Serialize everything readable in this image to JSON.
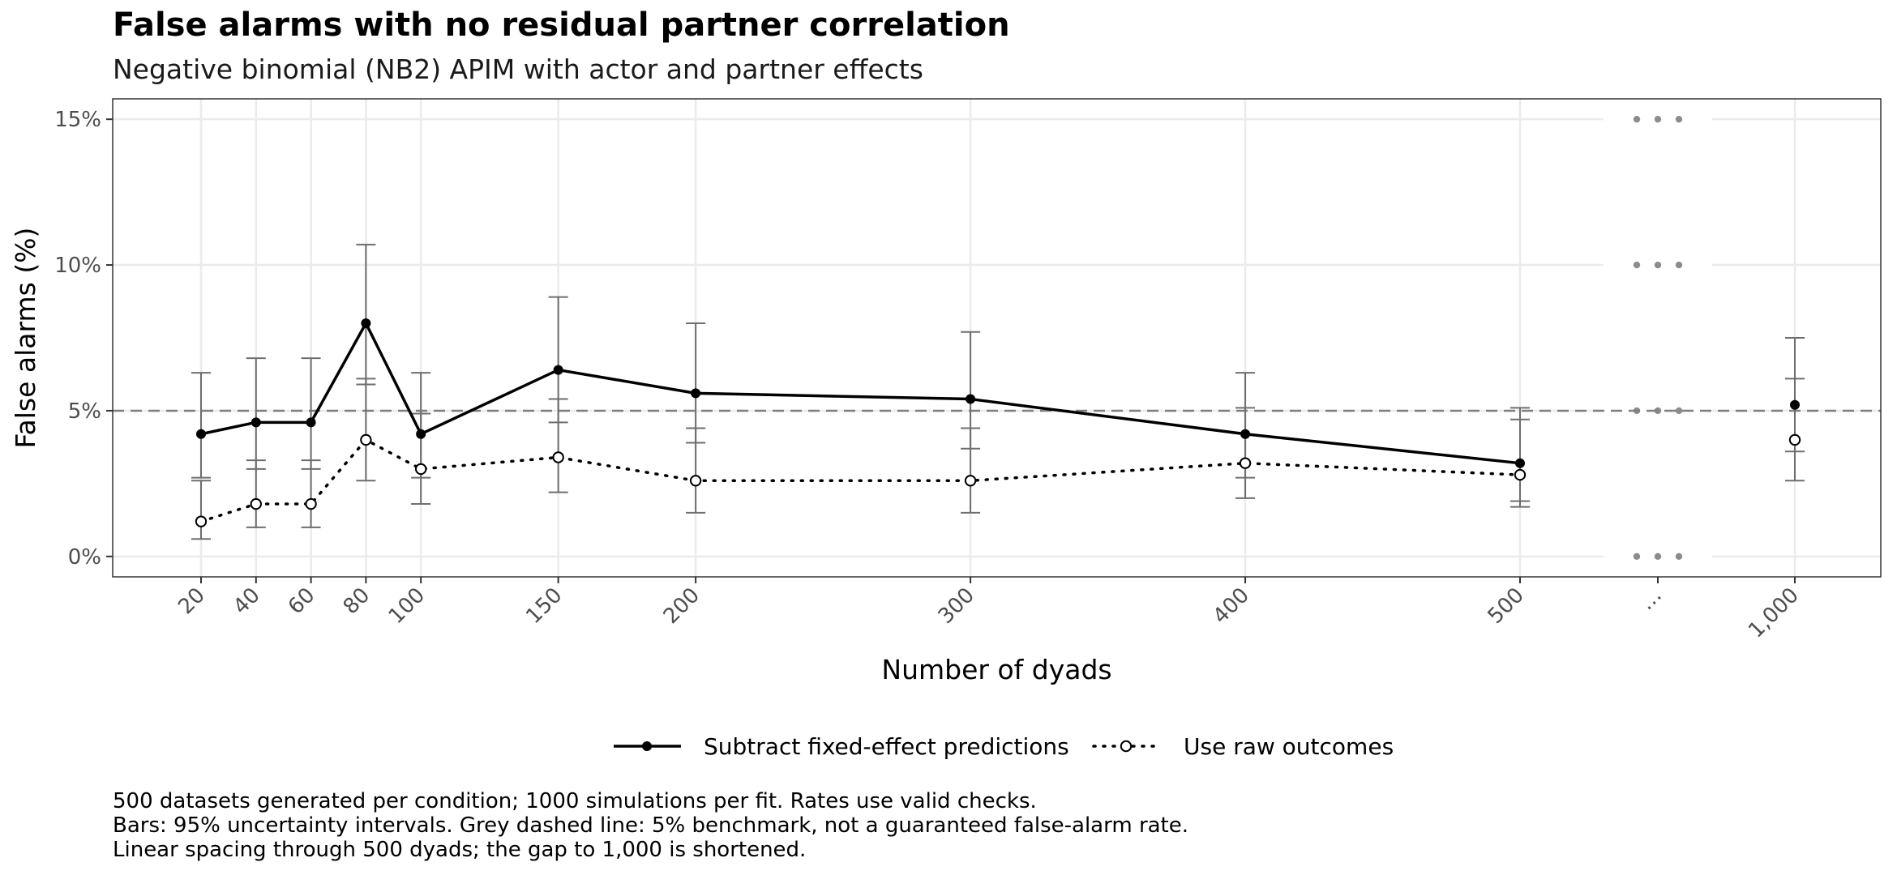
{
  "chart_data": {
    "type": "line",
    "title": "False alarms with no residual partner correlation",
    "subtitle": "Negative binomial (NB2) APIM with actor and partner effects",
    "xlabel": "Number of dyads",
    "ylabel": "False alarms (%)",
    "categories": [
      "20",
      "40",
      "60",
      "80",
      "100",
      "150",
      "200",
      "300",
      "400",
      "500",
      "…",
      "1,000"
    ],
    "x": [
      20,
      40,
      60,
      80,
      100,
      150,
      200,
      300,
      400,
      500,
      1000
    ],
    "x_tick_labels": [
      "20",
      "40",
      "60",
      "80",
      "100",
      "150",
      "200",
      "300",
      "400",
      "500",
      "…",
      "1,000"
    ],
    "y_ticks": [
      0,
      5,
      10,
      15
    ],
    "y_tick_labels": [
      "0%",
      "5%",
      "10%",
      "15%"
    ],
    "ylim": [
      -0.7,
      15.7
    ],
    "grid": true,
    "legend_position": "bottom",
    "benchmark": {
      "value": 5,
      "style": "dashed",
      "color": "#7f7f7f"
    },
    "axis_break": "between 500 and 1,000",
    "series": [
      {
        "name": "Subtract fixed-effect predictions",
        "line_style": "solid",
        "marker": "filled",
        "color": "#000000",
        "values": [
          4.2,
          4.6,
          4.6,
          8.0,
          4.2,
          6.4,
          5.6,
          5.4,
          4.2,
          3.2,
          5.2
        ],
        "lower": [
          2.7,
          3.0,
          3.0,
          5.9,
          2.7,
          4.6,
          3.9,
          3.7,
          2.7,
          1.9,
          3.6
        ],
        "upper": [
          6.3,
          6.8,
          6.8,
          10.7,
          6.3,
          8.9,
          8.0,
          7.7,
          6.3,
          5.1,
          7.5
        ]
      },
      {
        "name": "Use raw outcomes",
        "line_style": "dotted",
        "marker": "open",
        "color": "#000000",
        "values": [
          1.2,
          1.8,
          1.8,
          4.0,
          3.0,
          3.4,
          2.6,
          2.6,
          3.2,
          2.8,
          4.0
        ],
        "lower": [
          0.6,
          1.0,
          1.0,
          2.6,
          1.8,
          2.2,
          1.5,
          1.5,
          2.0,
          1.7,
          2.6
        ],
        "upper": [
          2.6,
          3.3,
          3.3,
          6.1,
          4.9,
          5.4,
          4.4,
          4.4,
          5.1,
          4.7,
          6.1
        ]
      }
    ],
    "caption": [
      "500 datasets generated per condition; 1000 simulations per fit. Rates use valid checks.",
      "Bars: 95% uncertainty intervals. Grey dashed line: 5% benchmark, not a guaranteed false-alarm rate.",
      "Linear spacing through 500 dyads; the gap to 1,000 is shortened."
    ],
    "colors": {
      "grid": "#ebebeb",
      "error_bar": "#6e6e6e",
      "panel_border": "#333333",
      "tick_label": "#4d4d4d",
      "break_dots": "#8c8c8c"
    }
  }
}
